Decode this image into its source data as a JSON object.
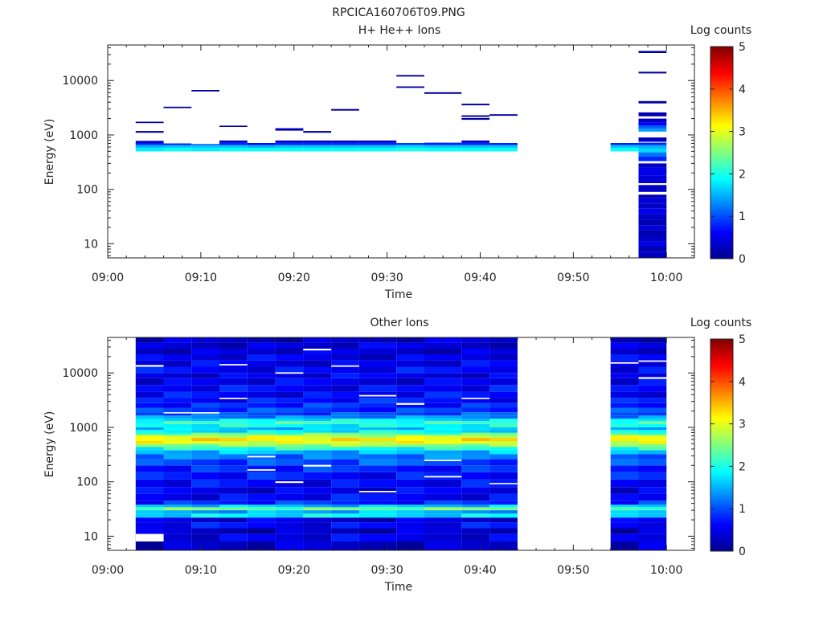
{
  "page_title": "RPCICA160706T09.PNG",
  "chart_data": [
    {
      "type": "heatmap",
      "title": "H+ He++ Ions",
      "xlabel": "Time",
      "ylabel": "Energy (eV)",
      "x_ticks": [
        "09:00",
        "09:10",
        "09:20",
        "09:30",
        "09:40",
        "09:50",
        "10:00"
      ],
      "xlim": [
        "09:00",
        "10:03"
      ],
      "y_scale": "log",
      "ylim": [
        5.5,
        45000
      ],
      "y_ticks": [
        10,
        100,
        1000,
        10000
      ],
      "y_tick_labels": [
        "10",
        "100",
        "1000",
        "10000"
      ],
      "colorbar": {
        "label": "Log counts",
        "range": [
          0,
          5
        ],
        "ticks": [
          "0",
          "1",
          "2",
          "3",
          "4",
          "5"
        ]
      },
      "bands": [
        {
          "t0": "09:03",
          "t1": "09:06",
          "cells": [
            [
              500,
              580,
              1.8
            ],
            [
              580,
              650,
              1.5
            ],
            [
              650,
              700,
              0.9
            ],
            [
              700,
              780,
              0.4
            ],
            [
              1100,
              1180,
              0.1
            ],
            [
              1650,
              1750,
              0.1
            ]
          ]
        },
        {
          "t0": "09:06",
          "t1": "09:09",
          "cells": [
            [
              500,
              580,
              1.9
            ],
            [
              580,
              650,
              1.6
            ],
            [
              650,
              700,
              0.8
            ],
            [
              3100,
              3300,
              0.1
            ]
          ]
        },
        {
          "t0": "09:09",
          "t1": "09:12",
          "cells": [
            [
              500,
              580,
              1.8
            ],
            [
              580,
              650,
              1.6
            ],
            [
              650,
              680,
              0.9
            ],
            [
              6300,
              6700,
              0.1
            ]
          ]
        },
        {
          "t0": "09:12",
          "t1": "09:15",
          "cells": [
            [
              500,
              580,
              1.9
            ],
            [
              580,
              650,
              1.6
            ],
            [
              650,
              720,
              0.8
            ],
            [
              720,
              790,
              0.3
            ],
            [
              1400,
              1480,
              0.1
            ]
          ]
        },
        {
          "t0": "09:15",
          "t1": "09:18",
          "cells": [
            [
              500,
              580,
              1.9
            ],
            [
              580,
              650,
              1.5
            ],
            [
              650,
              710,
              0.7
            ]
          ]
        },
        {
          "t0": "09:18",
          "t1": "09:21",
          "cells": [
            [
              500,
              580,
              1.9
            ],
            [
              580,
              650,
              1.6
            ],
            [
              650,
              720,
              0.8
            ],
            [
              720,
              790,
              0.3
            ],
            [
              1200,
              1330,
              0.2
            ]
          ]
        },
        {
          "t0": "09:21",
          "t1": "09:24",
          "cells": [
            [
              500,
              580,
              1.9
            ],
            [
              580,
              650,
              1.6
            ],
            [
              650,
              720,
              0.8
            ],
            [
              720,
              790,
              0.3
            ],
            [
              1100,
              1180,
              0.1
            ]
          ]
        },
        {
          "t0": "09:24",
          "t1": "09:27",
          "cells": [
            [
              500,
              580,
              1.9
            ],
            [
              580,
              650,
              1.6
            ],
            [
              650,
              720,
              0.8
            ],
            [
              720,
              790,
              0.3
            ],
            [
              2800,
              3000,
              0.1
            ]
          ]
        },
        {
          "t0": "09:27",
          "t1": "09:31",
          "cells": [
            [
              500,
              580,
              1.9
            ],
            [
              580,
              650,
              1.6
            ],
            [
              650,
              720,
              0.8
            ],
            [
              720,
              790,
              0.3
            ]
          ]
        },
        {
          "t0": "09:31",
          "t1": "09:34",
          "cells": [
            [
              500,
              580,
              2.0
            ],
            [
              580,
              650,
              1.7
            ],
            [
              650,
              710,
              0.9
            ],
            [
              7300,
              7800,
              0.1
            ],
            [
              11800,
              12600,
              0.1
            ]
          ]
        },
        {
          "t0": "09:34",
          "t1": "09:38",
          "cells": [
            [
              500,
              580,
              1.9
            ],
            [
              580,
              650,
              1.6
            ],
            [
              650,
              720,
              0.8
            ],
            [
              5700,
              6100,
              0.1
            ]
          ]
        },
        {
          "t0": "09:38",
          "t1": "09:41",
          "cells": [
            [
              500,
              580,
              1.9
            ],
            [
              580,
              650,
              1.6
            ],
            [
              650,
              720,
              0.8
            ],
            [
              720,
              790,
              0.3
            ],
            [
              1900,
              2050,
              0.1
            ],
            [
              2150,
              2300,
              0.1
            ],
            [
              3500,
              3750,
              0.1
            ]
          ]
        },
        {
          "t0": "09:41",
          "t1": "09:44",
          "cells": [
            [
              500,
              580,
              1.9
            ],
            [
              580,
              650,
              1.6
            ],
            [
              650,
              710,
              0.8
            ],
            [
              2250,
              2400,
              0.1
            ]
          ]
        },
        {
          "t0": "09:54",
          "t1": "09:57",
          "cells": [
            [
              500,
              580,
              1.9
            ],
            [
              580,
              650,
              1.6
            ],
            [
              650,
              710,
              0.8
            ]
          ]
        },
        {
          "t0": "09:57",
          "t1": "10:00",
          "cells": [
            [
              5.5,
              7,
              0.3
            ],
            [
              7,
              9,
              0.2
            ],
            [
              9,
              11,
              0.5
            ],
            [
              11,
              14,
              0.3
            ],
            [
              14,
              18,
              0.2
            ],
            [
              18,
              22,
              0.4
            ],
            [
              22,
              28,
              0.2
            ],
            [
              28,
              35,
              0.3
            ],
            [
              35,
              45,
              0.5
            ],
            [
              45,
              55,
              0.3
            ],
            [
              55,
              70,
              0.4
            ],
            [
              70,
              80,
              0.2
            ],
            [
              90,
              120,
              0.3
            ],
            [
              130,
              180,
              0.4
            ],
            [
              180,
              250,
              0.5
            ],
            [
              250,
              300,
              0.3
            ],
            [
              330,
              400,
              0.8
            ],
            [
              400,
              480,
              1.2
            ],
            [
              480,
              560,
              1.7
            ],
            [
              560,
              650,
              1.5
            ],
            [
              650,
              720,
              0.8
            ],
            [
              750,
              900,
              0.3
            ],
            [
              1150,
              1300,
              1.4
            ],
            [
              1300,
              1500,
              1.1
            ],
            [
              1500,
              1700,
              0.6
            ],
            [
              1700,
              2000,
              0.3
            ],
            [
              2200,
              2600,
              0.2
            ],
            [
              3800,
              4200,
              0.1
            ],
            [
              13500,
              14500,
              0.1
            ],
            [
              32000,
              35000,
              0.1
            ]
          ]
        }
      ]
    },
    {
      "type": "heatmap",
      "title": "Other Ions",
      "xlabel": "Time",
      "ylabel": "Energy (eV)",
      "x_ticks": [
        "09:00",
        "09:10",
        "09:20",
        "09:30",
        "09:40",
        "09:50",
        "10:00"
      ],
      "xlim": [
        "09:00",
        "10:03"
      ],
      "y_scale": "log",
      "ylim": [
        5.5,
        45000
      ],
      "y_ticks": [
        10,
        100,
        1000,
        10000
      ],
      "y_tick_labels": [
        "10",
        "100",
        "1000",
        "10000"
      ],
      "colorbar": {
        "label": "Log counts",
        "range": [
          0,
          5
        ],
        "ticks": [
          "0",
          "1",
          "2",
          "3",
          "4",
          "5"
        ]
      },
      "time_blocks": [
        [
          "09:03",
          "09:06"
        ],
        [
          "09:06",
          "09:09"
        ],
        [
          "09:09",
          "09:12"
        ],
        [
          "09:12",
          "09:15"
        ],
        [
          "09:15",
          "09:18"
        ],
        [
          "09:18",
          "09:21"
        ],
        [
          "09:21",
          "09:24"
        ],
        [
          "09:24",
          "09:27"
        ],
        [
          "09:27",
          "09:31"
        ],
        [
          "09:31",
          "09:34"
        ],
        [
          "09:34",
          "09:38"
        ],
        [
          "09:38",
          "09:41"
        ],
        [
          "09:41",
          "09:44"
        ],
        [
          "09:54",
          "09:57"
        ],
        [
          "09:57",
          "10:00"
        ]
      ],
      "energy_profile": [
        [
          5.5,
          8,
          0.3
        ],
        [
          8,
          11,
          0.5
        ],
        [
          11,
          14,
          0.3
        ],
        [
          14,
          18,
          0.6
        ],
        [
          18,
          22,
          0.4
        ],
        [
          22,
          26,
          1.8
        ],
        [
          26,
          30,
          1.5
        ],
        [
          30,
          34,
          2.4
        ],
        [
          34,
          38,
          1.6
        ],
        [
          38,
          45,
          0.8
        ],
        [
          45,
          60,
          0.6
        ],
        [
          60,
          80,
          0.5
        ],
        [
          80,
          110,
          0.6
        ],
        [
          110,
          150,
          0.7
        ],
        [
          150,
          200,
          0.8
        ],
        [
          200,
          260,
          1.0
        ],
        [
          260,
          320,
          1.2
        ],
        [
          320,
          380,
          1.5
        ],
        [
          380,
          440,
          2.0
        ],
        [
          440,
          500,
          2.6
        ],
        [
          500,
          560,
          3.0
        ],
        [
          560,
          640,
          3.2
        ],
        [
          640,
          720,
          2.9
        ],
        [
          720,
          800,
          2.3
        ],
        [
          800,
          900,
          1.8
        ],
        [
          900,
          1000,
          1.6
        ],
        [
          1000,
          1150,
          1.9
        ],
        [
          1150,
          1300,
          2.1
        ],
        [
          1300,
          1450,
          1.8
        ],
        [
          1450,
          1650,
          1.3
        ],
        [
          1650,
          1900,
          1.0
        ],
        [
          1900,
          2300,
          0.9
        ],
        [
          2300,
          2800,
          0.8
        ],
        [
          2800,
          3500,
          0.7
        ],
        [
          3500,
          4500,
          0.6
        ],
        [
          4500,
          6000,
          0.6
        ],
        [
          6000,
          8000,
          0.5
        ],
        [
          8000,
          10000,
          0.5
        ],
        [
          10000,
          13000,
          0.6
        ],
        [
          13000,
          17000,
          0.5
        ],
        [
          17000,
          22000,
          0.5
        ],
        [
          22000,
          28000,
          0.4
        ],
        [
          28000,
          36000,
          0.4
        ],
        [
          36000,
          45000,
          0.3
        ]
      ],
      "gaps": [
        [
          0,
          8,
          11
        ],
        [
          0,
          13000,
          14000
        ],
        [
          1,
          1800,
          1900
        ],
        [
          2,
          1800,
          1900
        ],
        [
          3,
          13800,
          14600
        ],
        [
          3,
          3300,
          3500
        ],
        [
          4,
          280,
          300
        ],
        [
          4,
          160,
          170
        ],
        [
          5,
          95,
          102
        ],
        [
          5,
          9700,
          10300
        ],
        [
          6,
          190,
          205
        ],
        [
          6,
          26000,
          28000
        ],
        [
          7,
          13000,
          13800
        ],
        [
          8,
          3700,
          3950
        ],
        [
          8,
          64,
          68
        ],
        [
          9,
          2600,
          2800
        ],
        [
          10,
          240,
          255
        ],
        [
          10,
          120,
          128
        ],
        [
          11,
          3300,
          3500
        ],
        [
          12,
          90,
          95
        ],
        [
          13,
          14800,
          15800
        ],
        [
          14,
          16000,
          17000
        ],
        [
          14,
          7800,
          8400
        ]
      ]
    }
  ]
}
